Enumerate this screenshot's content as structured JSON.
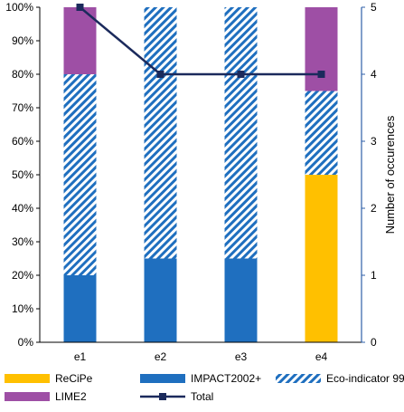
{
  "chart_data": {
    "type": "bar",
    "stacked": true,
    "categories": [
      "e1",
      "e2",
      "e3",
      "e4"
    ],
    "series": [
      {
        "name": "ReCiPe",
        "values": [
          0,
          0,
          0,
          50
        ],
        "color": "#ffc000",
        "pattern": "solid"
      },
      {
        "name": "IMPACT2002+",
        "values": [
          20,
          25,
          25,
          0
        ],
        "color": "#1f6fbf",
        "pattern": "solid"
      },
      {
        "name": "Eco-indicator 99",
        "values": [
          60,
          75,
          75,
          25
        ],
        "color": "#1f6fbf",
        "pattern": "diagonal-hatch"
      },
      {
        "name": "LIME2",
        "values": [
          20,
          0,
          0,
          25
        ],
        "color": "#9e4fa5",
        "pattern": "solid"
      }
    ],
    "line_series": {
      "name": "Total",
      "values": [
        5,
        4,
        4,
        4
      ],
      "color": "#1b2a5c",
      "axis": "secondary"
    },
    "y_left": {
      "ticks": [
        "0%",
        "10%",
        "20%",
        "30%",
        "40%",
        "50%",
        "60%",
        "70%",
        "80%",
        "90%",
        "100%"
      ],
      "ylim": [
        0,
        100
      ]
    },
    "y_right": {
      "label": "Number of occurences",
      "ticks": [
        "0",
        "1",
        "2",
        "3",
        "4",
        "5"
      ],
      "ylim": [
        0,
        5
      ]
    },
    "legend": {
      "placement": "bottom",
      "entries": [
        "ReCiPe",
        "IMPACT2002+",
        "Eco-indicator 99",
        "LIME2",
        "Total"
      ]
    },
    "grid": false
  }
}
